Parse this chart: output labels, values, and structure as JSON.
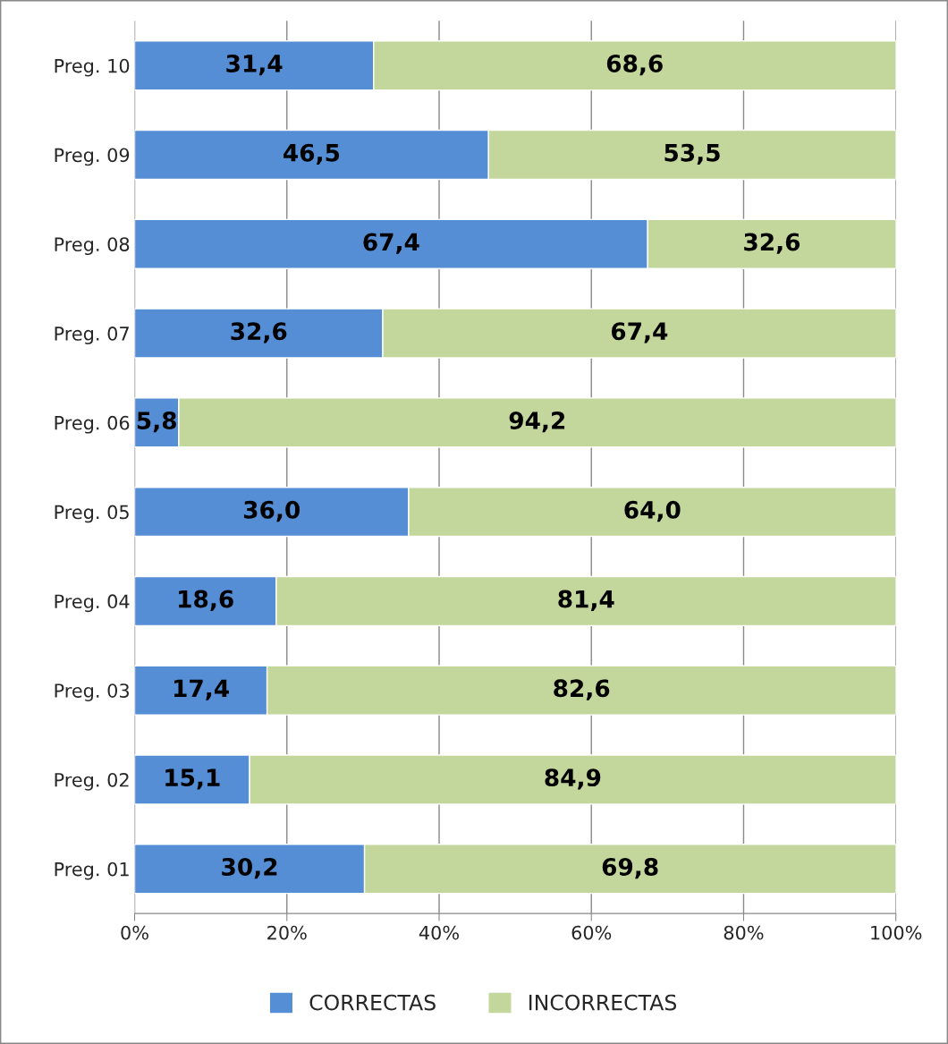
{
  "chart_data": {
    "type": "bar",
    "orientation": "horizontal",
    "stacked": true,
    "categories": [
      "Preg. 10",
      "Preg. 09",
      "Preg. 08",
      "Preg. 07",
      "Preg. 06",
      "Preg. 05",
      "Preg. 04",
      "Preg. 03",
      "Preg. 02",
      "Preg. 01"
    ],
    "series": [
      {
        "name": "CORRECTAS",
        "color": "#558ed5",
        "values": [
          31.4,
          46.5,
          67.4,
          32.6,
          5.8,
          36.0,
          18.6,
          17.4,
          15.1,
          30.2
        ],
        "value_labels": [
          "31,4",
          "46,5",
          "67,4",
          "32,6",
          "5,8",
          "36,0",
          "18,6",
          "17,4",
          "15,1",
          "30,2"
        ]
      },
      {
        "name": "INCORRECTAS",
        "color": "#c3d69b",
        "values": [
          68.6,
          53.5,
          32.6,
          67.4,
          94.2,
          64.0,
          81.4,
          82.6,
          84.9,
          69.8
        ],
        "value_labels": [
          "68,6",
          "53,5",
          "32,6",
          "67,4",
          "94,2",
          "64,0",
          "81,4",
          "82,6",
          "84,9",
          "69,8"
        ]
      }
    ],
    "xlim": [
      0,
      100
    ],
    "xticks": [
      {
        "value": 0,
        "label": "0%"
      },
      {
        "value": 20,
        "label": "20%"
      },
      {
        "value": 40,
        "label": "40%"
      },
      {
        "value": 60,
        "label": "60%"
      },
      {
        "value": 80,
        "label": "80%"
      },
      {
        "value": 100,
        "label": "100%"
      }
    ],
    "grid": "x",
    "legend": "bottom"
  }
}
